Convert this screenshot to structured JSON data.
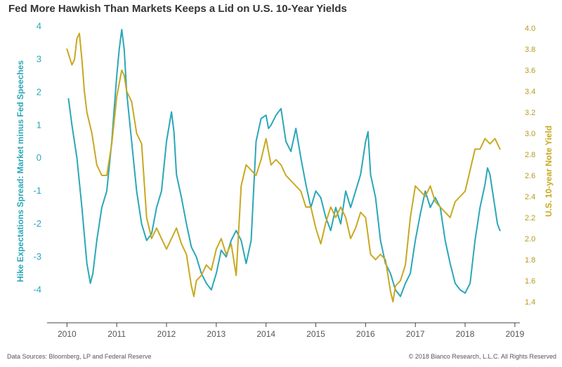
{
  "chart_data": {
    "type": "line",
    "title": "Fed More Hawkish Than Markets Keeps a Lid on U.S. 10-Year Yields",
    "ylabel_left": "Hike Expectations Spread: Market minus Fed Speeches",
    "ylabel_right": "U.S. 10-year Note Yield",
    "xlim": [
      2009.6,
      2019.1
    ],
    "ylim_left": [
      -5,
      4.2
    ],
    "ylim_right": [
      1.2,
      4.08
    ],
    "x_ticks": [
      2010,
      2011,
      2012,
      2013,
      2014,
      2015,
      2016,
      2017,
      2018,
      2019
    ],
    "y_left_ticks": [
      4,
      3,
      2,
      1,
      0,
      -1,
      -2,
      -3,
      -4
    ],
    "y_right_ticks": [
      "4.0",
      "3.8",
      "3.6",
      "3.4",
      "3.2",
      "3.0",
      "2.8",
      "2.6",
      "2.4",
      "2.2",
      "2.0",
      "1.8",
      "1.6",
      "1.4"
    ],
    "grid": false,
    "series": [
      {
        "name": "Hike Expectations Spread: Market minus Fed Speeches",
        "axis": "left",
        "color": "#2aa7b8",
        "x": [
          2010.03,
          2010.1,
          2010.2,
          2010.3,
          2010.4,
          2010.47,
          2010.52,
          2010.6,
          2010.7,
          2010.8,
          2010.9,
          2010.95,
          2011.0,
          2011.05,
          2011.1,
          2011.15,
          2011.2,
          2011.3,
          2011.4,
          2011.5,
          2011.6,
          2011.7,
          2011.8,
          2011.9,
          2012.0,
          2012.1,
          2012.15,
          2012.2,
          2012.3,
          2012.4,
          2012.5,
          2012.6,
          2012.7,
          2012.8,
          2012.9,
          2013.0,
          2013.1,
          2013.2,
          2013.3,
          2013.4,
          2013.5,
          2013.6,
          2013.7,
          2013.75,
          2013.8,
          2013.9,
          2014.0,
          2014.05,
          2014.1,
          2014.2,
          2014.3,
          2014.4,
          2014.5,
          2014.6,
          2014.7,
          2014.8,
          2014.9,
          2015.0,
          2015.1,
          2015.2,
          2015.3,
          2015.4,
          2015.5,
          2015.6,
          2015.7,
          2015.8,
          2015.9,
          2016.0,
          2016.05,
          2016.1,
          2016.2,
          2016.3,
          2016.4,
          2016.5,
          2016.6,
          2016.7,
          2016.8,
          2016.9,
          2017.0,
          2017.1,
          2017.2,
          2017.3,
          2017.4,
          2017.5,
          2017.6,
          2017.7,
          2017.8,
          2017.9,
          2018.0,
          2018.1,
          2018.2,
          2018.3,
          2018.4,
          2018.45,
          2018.5,
          2018.55,
          2018.6,
          2018.65,
          2018.7
        ],
        "values": [
          1.8,
          1.0,
          0.0,
          -1.5,
          -3.2,
          -3.8,
          -3.5,
          -2.5,
          -1.5,
          -1.0,
          0.5,
          1.5,
          2.5,
          3.3,
          3.9,
          3.3,
          2.0,
          0.5,
          -1.0,
          -2.0,
          -2.5,
          -2.3,
          -1.5,
          -1.0,
          0.5,
          1.4,
          0.8,
          -0.5,
          -1.2,
          -2.0,
          -2.7,
          -3.0,
          -3.5,
          -3.8,
          -4.0,
          -3.5,
          -2.8,
          -3.0,
          -2.5,
          -2.2,
          -2.5,
          -3.2,
          -2.5,
          -1.0,
          0.5,
          1.2,
          1.3,
          0.9,
          1.0,
          1.3,
          1.5,
          0.5,
          0.2,
          0.9,
          0.0,
          -0.8,
          -1.5,
          -1.0,
          -1.2,
          -1.8,
          -2.2,
          -1.5,
          -2.0,
          -1.0,
          -1.5,
          -1.0,
          -0.5,
          0.5,
          0.8,
          -0.5,
          -1.2,
          -2.5,
          -3.2,
          -3.5,
          -4.0,
          -4.2,
          -3.8,
          -3.5,
          -2.5,
          -1.7,
          -1.0,
          -1.5,
          -1.2,
          -1.5,
          -2.5,
          -3.2,
          -3.8,
          -4.0,
          -4.1,
          -3.8,
          -2.5,
          -1.5,
          -0.8,
          -0.3,
          -0.5,
          -1.0,
          -1.5,
          -2.0,
          -2.2
        ]
      },
      {
        "name": "U.S. 10-year Note Yield",
        "axis": "right",
        "color": "#c8a820",
        "x": [
          2010.0,
          2010.1,
          2010.15,
          2010.2,
          2010.25,
          2010.3,
          2010.35,
          2010.4,
          2010.5,
          2010.6,
          2010.7,
          2010.8,
          2010.9,
          2011.0,
          2011.1,
          2011.15,
          2011.2,
          2011.3,
          2011.4,
          2011.5,
          2011.6,
          2011.7,
          2011.8,
          2011.9,
          2012.0,
          2012.1,
          2012.2,
          2012.3,
          2012.4,
          2012.5,
          2012.55,
          2012.6,
          2012.7,
          2012.8,
          2012.9,
          2013.0,
          2013.1,
          2013.2,
          2013.3,
          2013.4,
          2013.5,
          2013.55,
          2013.6,
          2013.7,
          2013.8,
          2013.9,
          2014.0,
          2014.1,
          2014.2,
          2014.3,
          2014.4,
          2014.5,
          2014.6,
          2014.7,
          2014.8,
          2014.9,
          2015.0,
          2015.1,
          2015.2,
          2015.3,
          2015.4,
          2015.5,
          2015.6,
          2015.7,
          2015.8,
          2015.9,
          2016.0,
          2016.1,
          2016.2,
          2016.3,
          2016.4,
          2016.5,
          2016.55,
          2016.6,
          2016.7,
          2016.8,
          2016.9,
          2017.0,
          2017.1,
          2017.2,
          2017.3,
          2017.4,
          2017.5,
          2017.6,
          2017.7,
          2017.8,
          2017.9,
          2018.0,
          2018.1,
          2018.2,
          2018.3,
          2018.4,
          2018.5,
          2018.6,
          2018.7
        ],
        "values": [
          3.8,
          3.65,
          3.7,
          3.9,
          3.95,
          3.7,
          3.4,
          3.2,
          3.0,
          2.7,
          2.6,
          2.6,
          2.9,
          3.35,
          3.6,
          3.55,
          3.4,
          3.3,
          3.0,
          2.9,
          2.2,
          2.0,
          2.1,
          2.0,
          1.9,
          2.0,
          2.1,
          1.95,
          1.85,
          1.55,
          1.45,
          1.6,
          1.65,
          1.75,
          1.7,
          1.9,
          2.0,
          1.85,
          1.95,
          1.65,
          2.5,
          2.6,
          2.7,
          2.65,
          2.6,
          2.75,
          2.95,
          2.7,
          2.75,
          2.7,
          2.6,
          2.55,
          2.5,
          2.45,
          2.3,
          2.3,
          2.1,
          1.95,
          2.15,
          2.3,
          2.2,
          2.3,
          2.2,
          2.0,
          2.1,
          2.25,
          2.2,
          1.85,
          1.8,
          1.85,
          1.8,
          1.5,
          1.4,
          1.55,
          1.6,
          1.75,
          2.2,
          2.5,
          2.45,
          2.4,
          2.5,
          2.35,
          2.3,
          2.25,
          2.2,
          2.35,
          2.4,
          2.45,
          2.65,
          2.85,
          2.85,
          2.95,
          2.9,
          2.95,
          2.85
        ]
      }
    ]
  },
  "footer": {
    "sources": "Data Sources: Bloomberg, LP and Federal Reserve",
    "copyright": "© 2018 Bianco Research, L.L.C. All Rights Reserved"
  }
}
